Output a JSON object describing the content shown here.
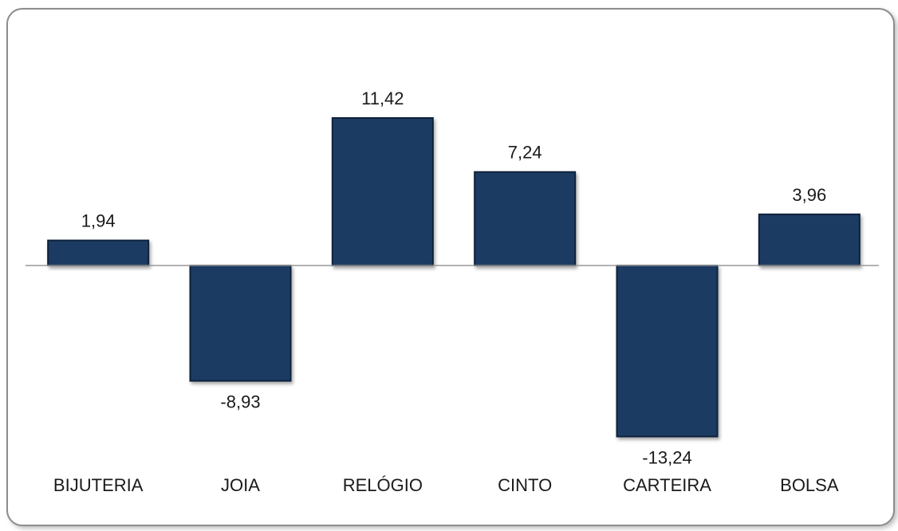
{
  "chart_data": {
    "type": "bar",
    "categories": [
      "BIJUTERIA",
      "JOIA",
      "RELÓGIO",
      "CINTO",
      "CARTEIRA",
      "BOLSA"
    ],
    "values": [
      1.94,
      -8.93,
      11.42,
      7.24,
      -13.24,
      3.96
    ],
    "value_labels": [
      "1,94",
      "-8,93",
      "11,42",
      "7,24",
      "-13,24",
      "3,96"
    ],
    "title": "",
    "xlabel": "",
    "ylabel": "",
    "grid": false,
    "legend": "none",
    "bar_color": "#1f3b63",
    "bar_edge_color": "#10213a"
  }
}
